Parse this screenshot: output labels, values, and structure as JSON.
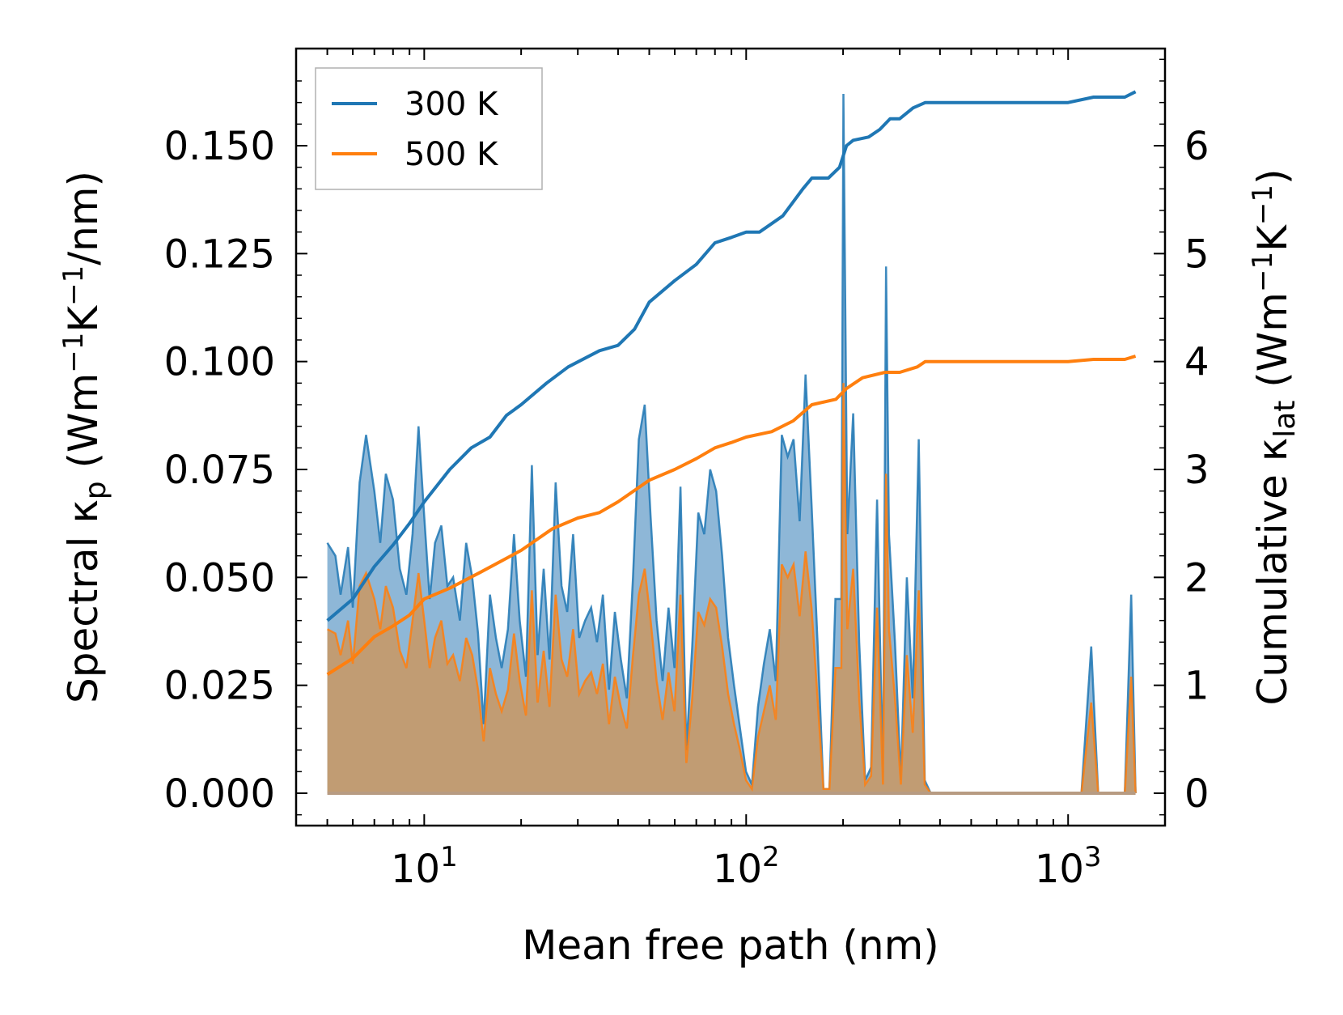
{
  "chart_data": {
    "type": "area+line",
    "title": "",
    "xlabel": "Mean free path (nm)",
    "ylabel_left": {
      "base": "Spectral κ",
      "sub": "p",
      "unit_pre": " (Wm",
      "sup1": "−1",
      "unit_mid": "K",
      "sup2": "−1",
      "unit_post": "/nm)"
    },
    "ylabel_right": {
      "base": "Cumulative κ",
      "sub": "lat",
      "unit_pre": " (Wm",
      "sup1": "−1",
      "unit_mid": "K",
      "sup2": "−1",
      "unit_post": ")"
    },
    "xscale": "log",
    "xlim": [
      4.0,
      2000
    ],
    "ylim_left": [
      -0.0075,
      0.1725
    ],
    "ylim_right": [
      -0.3,
      6.9
    ],
    "x_ticks": [
      {
        "value": 10,
        "base": "10",
        "exp": "1"
      },
      {
        "value": 100,
        "base": "10",
        "exp": "2"
      },
      {
        "value": 1000,
        "base": "10",
        "exp": "3"
      }
    ],
    "y_ticks_left": [
      "0.000",
      "0.025",
      "0.050",
      "0.075",
      "0.100",
      "0.125",
      "0.150"
    ],
    "y_tick_values_left": [
      0,
      0.025,
      0.05,
      0.075,
      0.1,
      0.125,
      0.15
    ],
    "y_ticks_right": [
      "0",
      "1",
      "2",
      "3",
      "4",
      "5",
      "6"
    ],
    "y_tick_values_right": [
      0,
      1,
      2,
      3,
      4,
      5,
      6
    ],
    "legend": {
      "position": "top-left",
      "entries": [
        "300 K",
        "500 K"
      ]
    },
    "colors": {
      "s300": "#1f77b4",
      "s500": "#ff7f0e",
      "fill300": "#5e98c6",
      "fill500": "#c49a6e"
    },
    "spectral_300": [
      [
        5.0,
        0.058
      ],
      [
        5.3,
        0.055
      ],
      [
        5.5,
        0.046
      ],
      [
        5.8,
        0.057
      ],
      [
        6.0,
        0.043
      ],
      [
        6.3,
        0.072
      ],
      [
        6.6,
        0.083
      ],
      [
        7.0,
        0.07
      ],
      [
        7.3,
        0.058
      ],
      [
        7.6,
        0.074
      ],
      [
        8.0,
        0.068
      ],
      [
        8.4,
        0.052
      ],
      [
        8.8,
        0.046
      ],
      [
        9.2,
        0.06
      ],
      [
        9.6,
        0.085
      ],
      [
        10.0,
        0.064
      ],
      [
        10.4,
        0.045
      ],
      [
        10.8,
        0.058
      ],
      [
        11.3,
        0.062
      ],
      [
        11.8,
        0.048
      ],
      [
        12.3,
        0.05
      ],
      [
        12.9,
        0.04
      ],
      [
        13.5,
        0.058
      ],
      [
        14.1,
        0.05
      ],
      [
        14.7,
        0.037
      ],
      [
        15.3,
        0.016
      ],
      [
        16.0,
        0.046
      ],
      [
        16.7,
        0.036
      ],
      [
        17.4,
        0.029
      ],
      [
        18.2,
        0.038
      ],
      [
        19.0,
        0.06
      ],
      [
        19.8,
        0.04
      ],
      [
        20.7,
        0.027
      ],
      [
        21.6,
        0.076
      ],
      [
        22.5,
        0.032
      ],
      [
        23.5,
        0.052
      ],
      [
        24.5,
        0.031
      ],
      [
        25.6,
        0.072
      ],
      [
        26.7,
        0.048
      ],
      [
        27.8,
        0.042
      ],
      [
        29.0,
        0.06
      ],
      [
        30.3,
        0.036
      ],
      [
        31.6,
        0.04
      ],
      [
        33.0,
        0.043
      ],
      [
        34.4,
        0.035
      ],
      [
        35.9,
        0.046
      ],
      [
        37.5,
        0.024
      ],
      [
        39.1,
        0.042
      ],
      [
        40.8,
        0.031
      ],
      [
        42.6,
        0.022
      ],
      [
        44.5,
        0.05
      ],
      [
        46.4,
        0.082
      ],
      [
        48.4,
        0.09
      ],
      [
        50.5,
        0.064
      ],
      [
        52.7,
        0.04
      ],
      [
        55.0,
        0.026
      ],
      [
        57.4,
        0.043
      ],
      [
        59.9,
        0.029
      ],
      [
        62.5,
        0.071
      ],
      [
        65.2,
        0.01
      ],
      [
        68.0,
        0.034
      ],
      [
        71.0,
        0.065
      ],
      [
        74.1,
        0.06
      ],
      [
        77.3,
        0.075
      ],
      [
        80.7,
        0.07
      ],
      [
        84.2,
        0.055
      ],
      [
        87.9,
        0.036
      ],
      [
        91.7,
        0.025
      ],
      [
        95.7,
        0.015
      ],
      [
        99.9,
        0.005
      ],
      [
        104.2,
        0.002
      ],
      [
        108.8,
        0.02
      ],
      [
        113.5,
        0.03
      ],
      [
        118.4,
        0.038
      ],
      [
        123.6,
        0.026
      ],
      [
        129.0,
        0.083
      ],
      [
        134.6,
        0.078
      ],
      [
        140.4,
        0.082
      ],
      [
        146.6,
        0.063
      ],
      [
        152.9,
        0.097
      ],
      [
        159.6,
        0.067
      ],
      [
        166.6,
        0.035
      ],
      [
        173.8,
        0.001
      ],
      [
        181.4,
        0.001
      ],
      [
        189.3,
        0.045
      ],
      [
        197.5,
        0.045
      ],
      [
        200.5,
        0.162
      ],
      [
        206.1,
        0.06
      ],
      [
        215.0,
        0.088
      ],
      [
        224.4,
        0.035
      ],
      [
        234.2,
        0.003
      ],
      [
        244.4,
        0.006
      ],
      [
        255.0,
        0.068
      ],
      [
        266.1,
        0.003
      ],
      [
        272.0,
        0.122
      ],
      [
        277.7,
        0.06
      ],
      [
        289.8,
        0.035
      ],
      [
        302.4,
        0.003
      ],
      [
        315.6,
        0.05
      ],
      [
        329.3,
        0.022
      ],
      [
        343.7,
        0.082
      ],
      [
        358.6,
        0.003
      ],
      [
        374.3,
        0.0
      ],
      [
        1100,
        0.0
      ],
      [
        1180,
        0.034
      ],
      [
        1240,
        0.0
      ],
      [
        1500,
        0.0
      ],
      [
        1570,
        0.046
      ],
      [
        1620,
        0.0
      ]
    ],
    "spectral_500": [
      [
        5.0,
        0.038
      ],
      [
        5.3,
        0.037
      ],
      [
        5.5,
        0.032
      ],
      [
        5.8,
        0.04
      ],
      [
        6.0,
        0.03
      ],
      [
        6.3,
        0.048
      ],
      [
        6.6,
        0.051
      ],
      [
        7.0,
        0.045
      ],
      [
        7.3,
        0.038
      ],
      [
        7.6,
        0.048
      ],
      [
        8.0,
        0.043
      ],
      [
        8.4,
        0.033
      ],
      [
        8.8,
        0.029
      ],
      [
        9.2,
        0.04
      ],
      [
        9.6,
        0.051
      ],
      [
        10.0,
        0.04
      ],
      [
        10.4,
        0.029
      ],
      [
        10.8,
        0.036
      ],
      [
        11.3,
        0.04
      ],
      [
        11.8,
        0.03
      ],
      [
        12.3,
        0.032
      ],
      [
        12.9,
        0.026
      ],
      [
        13.5,
        0.036
      ],
      [
        14.1,
        0.032
      ],
      [
        14.7,
        0.024
      ],
      [
        15.3,
        0.012
      ],
      [
        16.0,
        0.029
      ],
      [
        16.7,
        0.023
      ],
      [
        17.4,
        0.019
      ],
      [
        18.2,
        0.024
      ],
      [
        19.0,
        0.037
      ],
      [
        19.8,
        0.026
      ],
      [
        20.7,
        0.018
      ],
      [
        21.6,
        0.047
      ],
      [
        22.5,
        0.021
      ],
      [
        23.5,
        0.033
      ],
      [
        24.5,
        0.02
      ],
      [
        25.6,
        0.046
      ],
      [
        26.7,
        0.031
      ],
      [
        27.8,
        0.027
      ],
      [
        29.0,
        0.038
      ],
      [
        30.3,
        0.023
      ],
      [
        31.6,
        0.026
      ],
      [
        33.0,
        0.028
      ],
      [
        34.4,
        0.023
      ],
      [
        35.9,
        0.03
      ],
      [
        37.5,
        0.016
      ],
      [
        39.1,
        0.027
      ],
      [
        40.8,
        0.02
      ],
      [
        42.6,
        0.015
      ],
      [
        44.5,
        0.032
      ],
      [
        46.4,
        0.046
      ],
      [
        48.4,
        0.052
      ],
      [
        50.5,
        0.04
      ],
      [
        52.7,
        0.026
      ],
      [
        55.0,
        0.017
      ],
      [
        57.4,
        0.028
      ],
      [
        59.9,
        0.019
      ],
      [
        62.5,
        0.046
      ],
      [
        65.2,
        0.007
      ],
      [
        68.0,
        0.022
      ],
      [
        71.0,
        0.042
      ],
      [
        74.1,
        0.039
      ],
      [
        77.3,
        0.045
      ],
      [
        80.7,
        0.043
      ],
      [
        84.2,
        0.034
      ],
      [
        87.9,
        0.023
      ],
      [
        91.7,
        0.016
      ],
      [
        95.7,
        0.01
      ],
      [
        99.9,
        0.003
      ],
      [
        104.2,
        0.001
      ],
      [
        108.8,
        0.013
      ],
      [
        113.5,
        0.019
      ],
      [
        118.4,
        0.025
      ],
      [
        123.6,
        0.017
      ],
      [
        129.0,
        0.053
      ],
      [
        134.6,
        0.05
      ],
      [
        140.4,
        0.053
      ],
      [
        146.6,
        0.041
      ],
      [
        152.9,
        0.056
      ],
      [
        159.6,
        0.043
      ],
      [
        166.6,
        0.022
      ],
      [
        173.8,
        0.001
      ],
      [
        181.4,
        0.001
      ],
      [
        189.3,
        0.029
      ],
      [
        197.5,
        0.029
      ],
      [
        200.5,
        0.095
      ],
      [
        206.1,
        0.038
      ],
      [
        215.0,
        0.052
      ],
      [
        224.4,
        0.022
      ],
      [
        234.2,
        0.002
      ],
      [
        244.4,
        0.004
      ],
      [
        255.0,
        0.043
      ],
      [
        266.1,
        0.002
      ],
      [
        272.0,
        0.074
      ],
      [
        277.7,
        0.038
      ],
      [
        289.8,
        0.022
      ],
      [
        302.4,
        0.002
      ],
      [
        315.6,
        0.032
      ],
      [
        329.3,
        0.014
      ],
      [
        343.7,
        0.047
      ],
      [
        358.6,
        0.002
      ],
      [
        374.3,
        0.0
      ],
      [
        1100,
        0.0
      ],
      [
        1180,
        0.021
      ],
      [
        1240,
        0.0
      ],
      [
        1500,
        0.0
      ],
      [
        1570,
        0.027
      ],
      [
        1620,
        0.0
      ]
    ],
    "cumulative_300": [
      [
        5.0,
        1.6
      ],
      [
        6.0,
        1.8
      ],
      [
        7.0,
        2.1
      ],
      [
        8.0,
        2.3
      ],
      [
        9.0,
        2.5
      ],
      [
        10.0,
        2.7
      ],
      [
        12.0,
        3.0
      ],
      [
        14.0,
        3.2
      ],
      [
        16.0,
        3.3
      ],
      [
        18.0,
        3.5
      ],
      [
        20.0,
        3.6
      ],
      [
        24.0,
        3.8
      ],
      [
        28.0,
        3.95
      ],
      [
        35.0,
        4.1
      ],
      [
        40.0,
        4.15
      ],
      [
        45.0,
        4.3
      ],
      [
        50.0,
        4.55
      ],
      [
        60.0,
        4.75
      ],
      [
        70.0,
        4.9
      ],
      [
        80.0,
        5.1
      ],
      [
        90.0,
        5.15
      ],
      [
        100.0,
        5.2
      ],
      [
        110.0,
        5.2
      ],
      [
        130.0,
        5.35
      ],
      [
        150.0,
        5.6
      ],
      [
        160.0,
        5.7
      ],
      [
        180.0,
        5.7
      ],
      [
        195.0,
        5.8
      ],
      [
        205.0,
        6.0
      ],
      [
        215.0,
        6.05
      ],
      [
        240.0,
        6.08
      ],
      [
        260.0,
        6.15
      ],
      [
        280.0,
        6.25
      ],
      [
        300.0,
        6.25
      ],
      [
        330.0,
        6.35
      ],
      [
        360.0,
        6.4
      ],
      [
        400.0,
        6.4
      ],
      [
        1000.0,
        6.4
      ],
      [
        1200.0,
        6.45
      ],
      [
        1500.0,
        6.45
      ],
      [
        1620.0,
        6.5
      ]
    ],
    "cumulative_500": [
      [
        5.0,
        1.1
      ],
      [
        6.0,
        1.25
      ],
      [
        7.0,
        1.45
      ],
      [
        8.0,
        1.55
      ],
      [
        9.0,
        1.65
      ],
      [
        10.0,
        1.8
      ],
      [
        12.0,
        1.9
      ],
      [
        15.0,
        2.05
      ],
      [
        20.0,
        2.25
      ],
      [
        25.0,
        2.45
      ],
      [
        30.0,
        2.55
      ],
      [
        35.0,
        2.6
      ],
      [
        40.0,
        2.7
      ],
      [
        50.0,
        2.9
      ],
      [
        60.0,
        3.0
      ],
      [
        70.0,
        3.1
      ],
      [
        80.0,
        3.2
      ],
      [
        90.0,
        3.25
      ],
      [
        100.0,
        3.3
      ],
      [
        120.0,
        3.35
      ],
      [
        140.0,
        3.45
      ],
      [
        160.0,
        3.6
      ],
      [
        190.0,
        3.65
      ],
      [
        205.0,
        3.75
      ],
      [
        230.0,
        3.85
      ],
      [
        270.0,
        3.9
      ],
      [
        300.0,
        3.9
      ],
      [
        340.0,
        3.95
      ],
      [
        360.0,
        4.0
      ],
      [
        400.0,
        4.0
      ],
      [
        1000.0,
        4.0
      ],
      [
        1200.0,
        4.02
      ],
      [
        1500.0,
        4.02
      ],
      [
        1620.0,
        4.05
      ]
    ]
  }
}
